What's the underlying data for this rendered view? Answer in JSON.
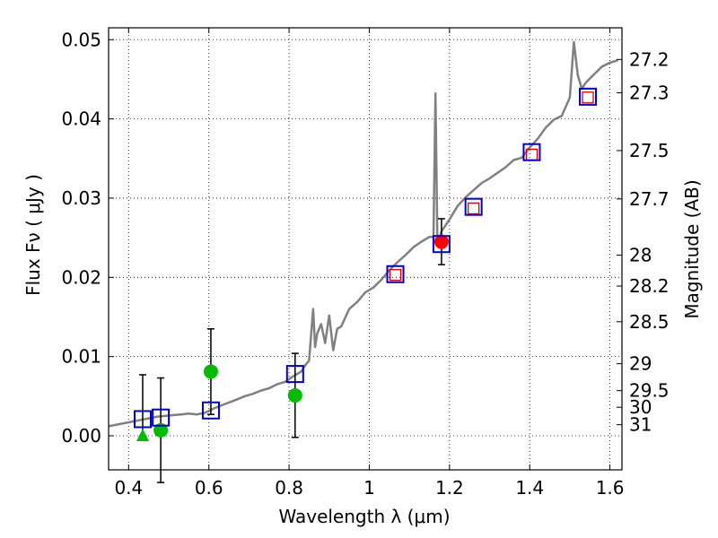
{
  "chart_data": {
    "type": "line",
    "xlabel": "Wavelength  λ (μm)",
    "ylabel": "Flux  Fν  ( μJy )",
    "ylabel_right": "Magnitude (AB)",
    "xlim": [
      0.35,
      1.63
    ],
    "ylim": [
      -0.0043,
      0.0515
    ],
    "grid": true,
    "x_ticks": [
      0.4,
      0.6,
      0.8,
      1.0,
      1.2,
      1.4,
      1.6
    ],
    "x_tick_labels": [
      "0.4",
      "0.6",
      "0.8",
      "1",
      "1.2",
      "1.4",
      "1.6"
    ],
    "y_ticks": [
      0.0,
      0.01,
      0.02,
      0.03,
      0.04,
      0.05
    ],
    "y_tick_labels": [
      "0.00",
      "0.01",
      "0.02",
      "0.03",
      "0.04",
      "0.05"
    ],
    "right_ticks": [
      {
        "label": "27.2",
        "flux": 0.0475
      },
      {
        "label": "27.3",
        "flux": 0.0433
      },
      {
        "label": "27.5",
        "flux": 0.036
      },
      {
        "label": "27.7",
        "flux": 0.0299
      },
      {
        "label": "28",
        "flux": 0.0228
      },
      {
        "label": "28.2",
        "flux": 0.0189
      },
      {
        "label": "28.5",
        "flux": 0.0144
      },
      {
        "label": "29",
        "flux": 0.0091
      },
      {
        "label": "29.5",
        "flux": 0.0057
      },
      {
        "label": "30",
        "flux": 0.0036
      },
      {
        "label": "31",
        "flux": 0.0014
      }
    ],
    "series": [
      {
        "name": "model spectrum",
        "color": "#808080",
        "x": [
          0.35,
          0.37,
          0.39,
          0.41,
          0.43,
          0.45,
          0.47,
          0.49,
          0.51,
          0.53,
          0.55,
          0.57,
          0.59,
          0.61,
          0.63,
          0.65,
          0.67,
          0.69,
          0.71,
          0.73,
          0.75,
          0.77,
          0.79,
          0.81,
          0.83,
          0.84,
          0.85,
          0.86,
          0.865,
          0.87,
          0.88,
          0.89,
          0.9,
          0.91,
          0.92,
          0.93,
          0.95,
          0.97,
          0.99,
          1.01,
          1.03,
          1.05,
          1.07,
          1.09,
          1.11,
          1.13,
          1.15,
          1.16,
          1.165,
          1.17,
          1.18,
          1.2,
          1.22,
          1.24,
          1.26,
          1.28,
          1.3,
          1.32,
          1.34,
          1.36,
          1.38,
          1.4,
          1.42,
          1.44,
          1.46,
          1.48,
          1.5,
          1.51,
          1.52,
          1.53,
          1.54,
          1.56,
          1.58,
          1.6,
          1.62
        ],
        "values": [
          0.0012,
          0.0014,
          0.0016,
          0.0018,
          0.002,
          0.0022,
          0.0024,
          0.0025,
          0.0026,
          0.0027,
          0.0028,
          0.0027,
          0.0029,
          0.0034,
          0.0038,
          0.0042,
          0.0046,
          0.005,
          0.0053,
          0.0057,
          0.006,
          0.0065,
          0.0068,
          0.0075,
          0.0081,
          0.0089,
          0.0095,
          0.016,
          0.0112,
          0.0129,
          0.0141,
          0.0117,
          0.0152,
          0.0108,
          0.0135,
          0.0138,
          0.016,
          0.0169,
          0.0181,
          0.0187,
          0.0197,
          0.0209,
          0.0219,
          0.0228,
          0.0238,
          0.0245,
          0.0251,
          0.0251,
          0.0432,
          0.024,
          0.0258,
          0.0273,
          0.029,
          0.0301,
          0.031,
          0.0319,
          0.0325,
          0.0332,
          0.0339,
          0.0348,
          0.0351,
          0.0364,
          0.0375,
          0.0389,
          0.0399,
          0.0404,
          0.0427,
          0.0497,
          0.0455,
          0.0438,
          0.0446,
          0.0456,
          0.0466,
          0.0471,
          0.0474
        ]
      }
    ],
    "model_photometry": {
      "name": "model magnitudes (blue squares)",
      "color": "#0000cc",
      "x": [
        0.435,
        0.48,
        0.605,
        0.815,
        1.065,
        1.18,
        1.26,
        1.405,
        1.545
      ],
      "values": [
        0.0021,
        0.0023,
        0.0032,
        0.0078,
        0.0204,
        0.0242,
        0.0289,
        0.0358,
        0.0428
      ]
    },
    "observed_photometry": {
      "name": "observed fluxes (red open squares)",
      "color": "#dd0000",
      "x": [
        1.065,
        1.26,
        1.405,
        1.545
      ],
      "values": [
        0.0203,
        0.0287,
        0.0355,
        0.0427
      ]
    },
    "detection": {
      "name": "detection (red filled circle)",
      "color": "#ff0000",
      "x": [
        1.18
      ],
      "values": [
        0.0245
      ],
      "errors": [
        0.0029
      ]
    },
    "upper_limits": {
      "name": "limits (green circles)",
      "color": "#00bb00",
      "x": [
        0.48,
        0.605,
        0.815
      ],
      "values": [
        0.0007,
        0.0081,
        0.0051
      ],
      "errors": [
        0.0066,
        0.0054,
        0.0053
      ]
    },
    "nondetection": {
      "name": "non-detection (green triangle)",
      "color": "#00bb00",
      "x": [
        0.435
      ],
      "values": [
        0.0
      ],
      "error_high": [
        0.0077
      ]
    }
  }
}
